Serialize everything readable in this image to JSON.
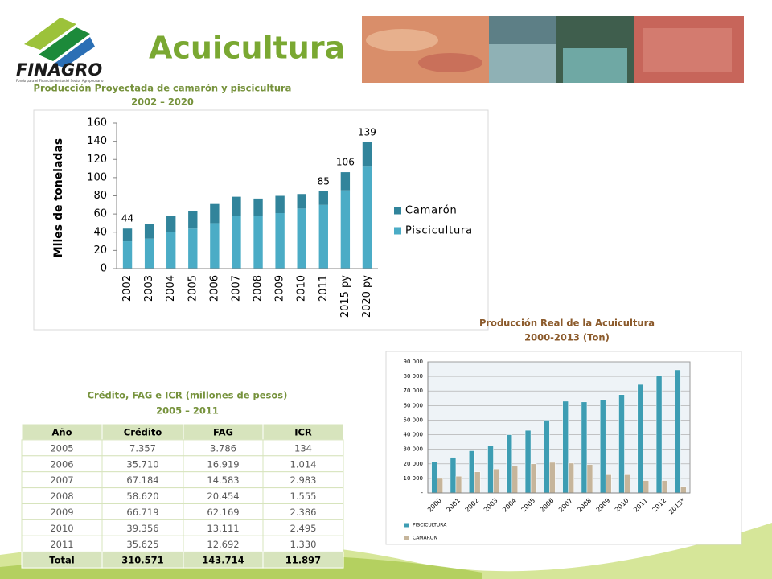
{
  "header": {
    "logo": "FINAGRO",
    "logo_tagline": "Fondo para el Financiamiento del Sector Agropecuario",
    "title": "Acuicultura"
  },
  "chart_data": [
    {
      "type": "bar",
      "stacked": true,
      "title": "Producción Proyectada de camarón y piscicultura",
      "subtitle": "2002 – 2020",
      "y_label": "Miles de toneladas",
      "categories": [
        "2002",
        "2003",
        "2004",
        "2005",
        "2006",
        "2007",
        "2008",
        "2009",
        "2010",
        "2011",
        "2015 py",
        "2020 py"
      ],
      "series": [
        {
          "name": "Piscicultura",
          "color": "#4bacc6",
          "values": [
            30,
            33,
            40,
            44,
            50,
            58,
            58,
            61,
            66,
            70,
            86,
            112
          ]
        },
        {
          "name": "Camarón",
          "color": "#31849b",
          "values": [
            14,
            16,
            18,
            19,
            21,
            21,
            19,
            19,
            16,
            15,
            20,
            27
          ]
        }
      ],
      "total_labels": [
        44,
        null,
        null,
        null,
        null,
        null,
        null,
        null,
        null,
        85,
        106,
        139
      ],
      "ylim": [
        0,
        160
      ],
      "yticks": [
        0,
        20,
        40,
        60,
        80,
        100,
        120,
        140,
        160
      ],
      "grid": false,
      "legend": "right"
    },
    {
      "type": "bar",
      "stacked": false,
      "title": "Producción Real de la Acuicultura",
      "subtitle": "2000-2013  (Ton)",
      "categories": [
        "2000",
        "2001",
        "2002",
        "2003",
        "2004",
        "2005",
        "2006",
        "2007",
        "2008",
        "2009",
        "2010",
        "2011",
        "2012",
        "2013*"
      ],
      "series": [
        {
          "name": "PISCICULTURA",
          "color": "#3d9db3",
          "values": [
            21500,
            24500,
            29000,
            32500,
            40000,
            43000,
            50000,
            63000,
            62500,
            64000,
            67500,
            74500,
            80500,
            84500
          ]
        },
        {
          "name": "CAMARON",
          "color": "#c6b59b",
          "values": [
            10000,
            11500,
            14500,
            16500,
            18500,
            20000,
            21000,
            20500,
            19500,
            12500,
            12500,
            8500,
            8500,
            4500
          ]
        }
      ],
      "ylim": [
        0,
        90000
      ],
      "yticks": [
        {
          "value": 0,
          "label": "-"
        },
        {
          "value": 10000,
          "label": "10 000"
        },
        {
          "value": 20000,
          "label": "20 000"
        },
        {
          "value": 30000,
          "label": "30 000"
        },
        {
          "value": 40000,
          "label": "40 000"
        },
        {
          "value": 50000,
          "label": "50 000"
        },
        {
          "value": 60000,
          "label": "60 000"
        },
        {
          "value": 70000,
          "label": "70 000"
        },
        {
          "value": 80000,
          "label": "80 000"
        },
        {
          "value": 90000,
          "label": "90 000"
        }
      ],
      "grid": true,
      "legend": "bottom-left"
    }
  ],
  "table": {
    "title": "Crédito, FAG e ICR (millones de pesos)",
    "subtitle": "2005 – 2011",
    "header": [
      "Año",
      "Crédito",
      "FAG",
      "ICR"
    ],
    "rows": [
      [
        "2005",
        "7.357",
        "3.786",
        "134"
      ],
      [
        "2006",
        "35.710",
        "16.919",
        "1.014"
      ],
      [
        "2007",
        "67.184",
        "14.583",
        "2.983"
      ],
      [
        "2008",
        "58.620",
        "20.454",
        "1.555"
      ],
      [
        "2009",
        "66.719",
        "62.169",
        "2.386"
      ],
      [
        "2010",
        "39.356",
        "13.111",
        "2.495"
      ],
      [
        "2011",
        "35.625",
        "12.692",
        "1.330"
      ]
    ],
    "total": [
      "Total",
      "310.571",
      "143.714",
      "11.897"
    ]
  }
}
